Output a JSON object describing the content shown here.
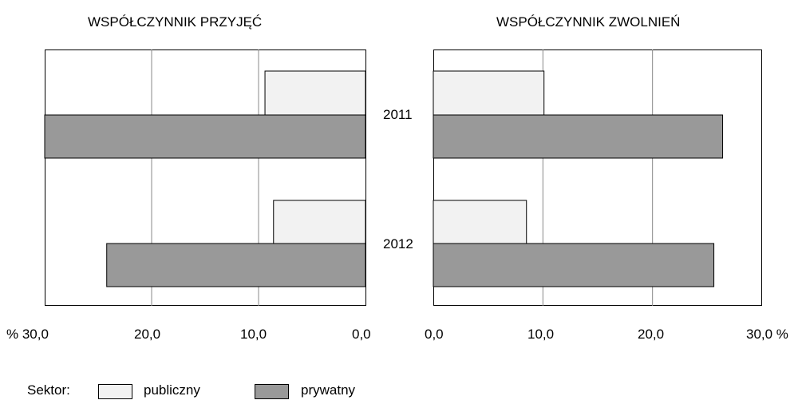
{
  "chart_data": [
    {
      "type": "bar",
      "orientation": "horizontal",
      "direction": "right-to-left",
      "title": "WSPÓŁCZYNNIK PRZYJĘĆ",
      "categories": [
        "2011",
        "2012"
      ],
      "series": [
        {
          "name": "publiczny",
          "values": [
            9.4,
            8.6
          ],
          "color": "#f2f2f2"
        },
        {
          "name": "prywatny",
          "values": [
            30.0,
            24.2
          ],
          "color": "#999999"
        }
      ],
      "xlim": [
        0,
        30
      ],
      "ticks": [
        "% 30,0",
        "20,0",
        "10,0",
        "0,0"
      ],
      "grid": true
    },
    {
      "type": "bar",
      "orientation": "horizontal",
      "direction": "left-to-right",
      "title": "WSPÓŁCZYNNIK ZWOLNIEŃ",
      "categories": [
        "2011",
        "2012"
      ],
      "series": [
        {
          "name": "publiczny",
          "values": [
            10.1,
            8.5
          ],
          "color": "#f2f2f2"
        },
        {
          "name": "prywatny",
          "values": [
            26.4,
            25.6
          ],
          "color": "#999999"
        }
      ],
      "xlim": [
        0,
        30
      ],
      "ticks": [
        "0,0",
        "10,0",
        "20,0",
        "30,0 %"
      ],
      "grid": true
    }
  ],
  "legend": {
    "label": "Sektor:",
    "items": [
      {
        "name": "publiczny",
        "color": "#f2f2f2"
      },
      {
        "name": "prywatny",
        "color": "#999999"
      }
    ]
  }
}
